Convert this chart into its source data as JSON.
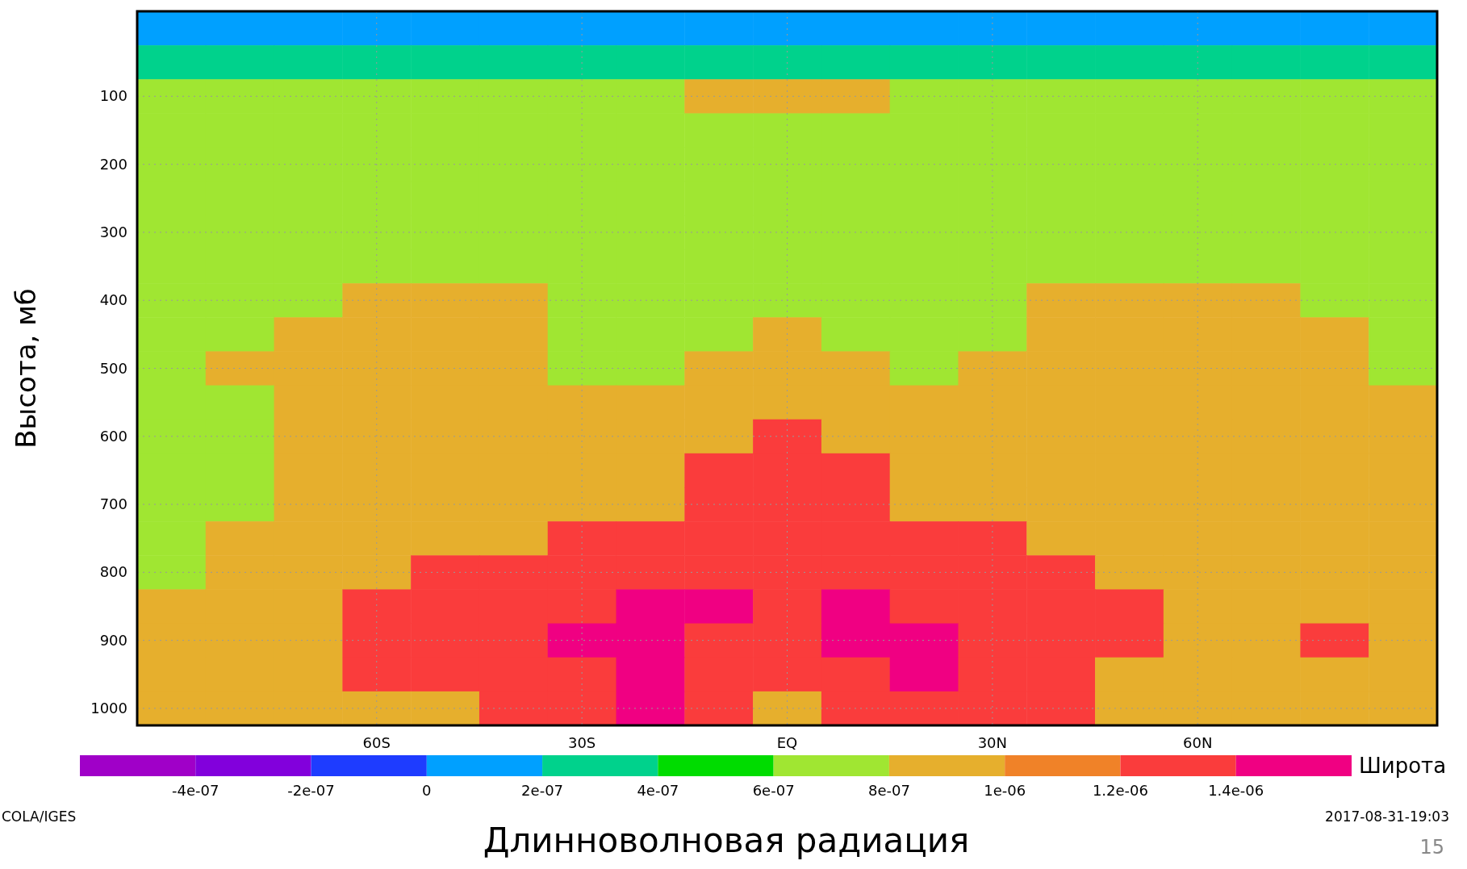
{
  "chart_data": {
    "type": "heatmap",
    "title": "Длинноволновая радиация",
    "xlabel": "Широта",
    "ylabel": "Высота, мб",
    "annotations": [
      "COLA/IGES",
      "2017-08-31-19:03",
      "15"
    ],
    "categories": [
      null,
      null,
      null,
      "60S",
      null,
      null,
      "30S",
      null,
      null,
      "EQ",
      null,
      null,
      "30N",
      null,
      null,
      "60N",
      null,
      null,
      null
    ],
    "y_categories": [
      null,
      null,
      "100",
      null,
      "200",
      null,
      "300",
      null,
      "400",
      null,
      "500",
      null,
      "600",
      null,
      "700",
      null,
      "800",
      null,
      "900",
      null,
      "1000"
    ],
    "cells": [
      [
        1e-07,
        1e-07,
        1e-07,
        1e-07,
        1e-07,
        1e-07,
        1e-07,
        1e-07,
        1e-07,
        1e-07,
        1e-07,
        1e-07,
        1e-07,
        1e-07,
        1e-07,
        1e-07,
        1e-07,
        1e-07,
        1e-07
      ],
      [
        3e-07,
        3e-07,
        3e-07,
        3e-07,
        3e-07,
        3e-07,
        3e-07,
        3e-07,
        3e-07,
        3e-07,
        3e-07,
        3e-07,
        3e-07,
        3e-07,
        3e-07,
        3e-07,
        3e-07,
        3e-07,
        3e-07
      ],
      [
        7e-07,
        7e-07,
        7e-07,
        7e-07,
        7e-07,
        7e-07,
        7e-07,
        7e-07,
        9e-07,
        9e-07,
        9e-07,
        7e-07,
        7e-07,
        7e-07,
        7e-07,
        7e-07,
        7e-07,
        7e-07,
        7e-07
      ],
      [
        7e-07,
        7e-07,
        7e-07,
        7e-07,
        7e-07,
        7e-07,
        7e-07,
        7e-07,
        7e-07,
        7e-07,
        7e-07,
        7e-07,
        7e-07,
        7e-07,
        7e-07,
        7e-07,
        7e-07,
        7e-07,
        7e-07
      ],
      [
        7e-07,
        7e-07,
        7e-07,
        7e-07,
        7e-07,
        7e-07,
        7e-07,
        7e-07,
        7e-07,
        7e-07,
        7e-07,
        7e-07,
        7e-07,
        7e-07,
        7e-07,
        7e-07,
        7e-07,
        7e-07,
        7e-07
      ],
      [
        7e-07,
        7e-07,
        7e-07,
        7e-07,
        7e-07,
        7e-07,
        7e-07,
        7e-07,
        7e-07,
        7e-07,
        7e-07,
        7e-07,
        7e-07,
        7e-07,
        7e-07,
        7e-07,
        7e-07,
        7e-07,
        7e-07
      ],
      [
        7e-07,
        7e-07,
        7e-07,
        7e-07,
        7e-07,
        7e-07,
        7e-07,
        7e-07,
        7e-07,
        7e-07,
        7e-07,
        7e-07,
        7e-07,
        7e-07,
        7e-07,
        7e-07,
        7e-07,
        7e-07,
        7e-07
      ],
      [
        7e-07,
        7e-07,
        7e-07,
        7e-07,
        7e-07,
        7e-07,
        7e-07,
        7e-07,
        7e-07,
        7e-07,
        7e-07,
        7e-07,
        7e-07,
        7e-07,
        7e-07,
        7e-07,
        7e-07,
        7e-07,
        7e-07
      ],
      [
        7e-07,
        7e-07,
        7e-07,
        9e-07,
        9e-07,
        9e-07,
        7e-07,
        7e-07,
        7e-07,
        7e-07,
        7e-07,
        7e-07,
        7e-07,
        9e-07,
        9e-07,
        9e-07,
        9e-07,
        7e-07,
        7e-07
      ],
      [
        7e-07,
        7e-07,
        9e-07,
        9e-07,
        9e-07,
        9e-07,
        7e-07,
        7e-07,
        7e-07,
        9e-07,
        7e-07,
        7e-07,
        7e-07,
        9e-07,
        9e-07,
        9e-07,
        9e-07,
        9e-07,
        7e-07
      ],
      [
        7e-07,
        9e-07,
        9e-07,
        9e-07,
        9e-07,
        9e-07,
        7e-07,
        7e-07,
        9e-07,
        9e-07,
        9e-07,
        7e-07,
        9e-07,
        9e-07,
        9e-07,
        9e-07,
        9e-07,
        9e-07,
        7e-07
      ],
      [
        7e-07,
        7e-07,
        9e-07,
        9e-07,
        9e-07,
        9e-07,
        9e-07,
        9e-07,
        9e-07,
        9e-07,
        9e-07,
        9e-07,
        9e-07,
        9e-07,
        9e-07,
        9e-07,
        9e-07,
        9e-07,
        9e-07
      ],
      [
        7e-07,
        7e-07,
        9e-07,
        9e-07,
        9e-07,
        9e-07,
        9e-07,
        9e-07,
        9e-07,
        1.3e-06,
        9e-07,
        9e-07,
        9e-07,
        9e-07,
        9e-07,
        9e-07,
        9e-07,
        9e-07,
        9e-07
      ],
      [
        7e-07,
        7e-07,
        9e-07,
        9e-07,
        9e-07,
        9e-07,
        9e-07,
        9e-07,
        1.3e-06,
        1.3e-06,
        1.3e-06,
        9e-07,
        9e-07,
        9e-07,
        9e-07,
        9e-07,
        9e-07,
        9e-07,
        9e-07
      ],
      [
        7e-07,
        7e-07,
        9e-07,
        9e-07,
        9e-07,
        9e-07,
        9e-07,
        9e-07,
        1.3e-06,
        1.3e-06,
        1.3e-06,
        9e-07,
        9e-07,
        9e-07,
        9e-07,
        9e-07,
        9e-07,
        9e-07,
        9e-07
      ],
      [
        7e-07,
        9e-07,
        9e-07,
        9e-07,
        9e-07,
        9e-07,
        1.3e-06,
        1.3e-06,
        1.3e-06,
        1.3e-06,
        1.3e-06,
        1.3e-06,
        1.3e-06,
        9e-07,
        9e-07,
        9e-07,
        9e-07,
        9e-07,
        9e-07
      ],
      [
        7e-07,
        9e-07,
        9e-07,
        9e-07,
        1.3e-06,
        1.3e-06,
        1.3e-06,
        1.3e-06,
        1.3e-06,
        1.3e-06,
        1.3e-06,
        1.3e-06,
        1.3e-06,
        1.3e-06,
        9e-07,
        9e-07,
        9e-07,
        9e-07,
        9e-07
      ],
      [
        9e-07,
        9e-07,
        9e-07,
        1.3e-06,
        1.3e-06,
        1.3e-06,
        1.3e-06,
        1.5e-06,
        1.5e-06,
        1.3e-06,
        1.5e-06,
        1.3e-06,
        1.3e-06,
        1.3e-06,
        1.3e-06,
        9e-07,
        9e-07,
        9e-07,
        9e-07
      ],
      [
        9e-07,
        9e-07,
        9e-07,
        1.3e-06,
        1.3e-06,
        1.3e-06,
        1.5e-06,
        1.5e-06,
        1.3e-06,
        1.3e-06,
        1.5e-06,
        1.5e-06,
        1.3e-06,
        1.3e-06,
        1.3e-06,
        9e-07,
        9e-07,
        1.3e-06,
        9e-07
      ],
      [
        9e-07,
        9e-07,
        9e-07,
        1.3e-06,
        1.3e-06,
        1.3e-06,
        1.3e-06,
        1.5e-06,
        1.3e-06,
        1.3e-06,
        1.3e-06,
        1.5e-06,
        1.3e-06,
        1.3e-06,
        9e-07,
        9e-07,
        9e-07,
        9e-07,
        9e-07
      ],
      [
        9e-07,
        9e-07,
        9e-07,
        9e-07,
        9e-07,
        1.3e-06,
        1.3e-06,
        1.5e-06,
        1.3e-06,
        9e-07,
        1.3e-06,
        1.3e-06,
        1.3e-06,
        1.3e-06,
        9e-07,
        9e-07,
        9e-07,
        9e-07,
        9e-07
      ]
    ],
    "clim": [
      -6e-07,
      1.6e-06
    ],
    "cticks": [
      {
        "value": -4e-07,
        "label": "-4e-07"
      },
      {
        "value": -2e-07,
        "label": "-2e-07"
      },
      {
        "value": 0,
        "label": "0"
      },
      {
        "value": 2e-07,
        "label": "2e-07"
      },
      {
        "value": 4e-07,
        "label": "4e-07"
      },
      {
        "value": 6e-07,
        "label": "6e-07"
      },
      {
        "value": 8e-07,
        "label": "8e-07"
      },
      {
        "value": 1e-06,
        "label": "1e-06"
      },
      {
        "value": 1.2e-06,
        "label": "1.2e-06"
      },
      {
        "value": 1.4e-06,
        "label": "1.4e-06"
      }
    ],
    "colors": [
      "#a000c8",
      "#8200dc",
      "#1e3cff",
      "#00a0ff",
      "#00d28c",
      "#00dc00",
      "#a0e632",
      "#e6af2d",
      "#f08228",
      "#fa3c3c",
      "#f00082"
    ],
    "grid": true
  }
}
